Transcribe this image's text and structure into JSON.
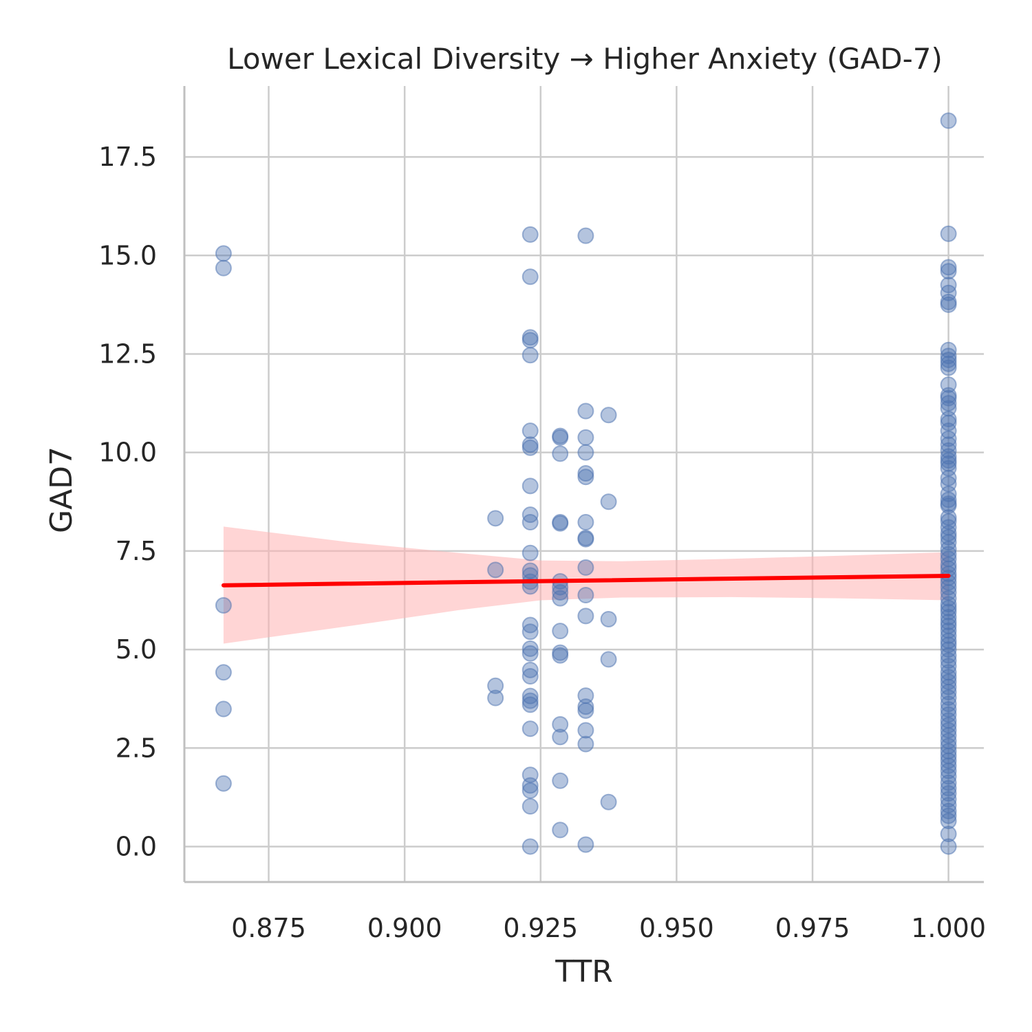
{
  "chart_data": {
    "type": "scatter",
    "title": "Lower Lexical Diversity → Higher Anxiety (GAD-7)",
    "xlabel": "TTR",
    "ylabel": "GAD7",
    "xlim": [
      0.8595,
      1.0065
    ],
    "ylim": [
      -0.9,
      19.3
    ],
    "xticks": [
      {
        "value": 0.875,
        "label": "0.875"
      },
      {
        "value": 0.9,
        "label": "0.900"
      },
      {
        "value": 0.925,
        "label": "0.925"
      },
      {
        "value": 0.95,
        "label": "0.950"
      },
      {
        "value": 0.975,
        "label": "0.975"
      },
      {
        "value": 1.0,
        "label": "1.000"
      }
    ],
    "yticks": [
      {
        "value": 0,
        "label": "0.0"
      },
      {
        "value": 2.5,
        "label": "2.5"
      },
      {
        "value": 5,
        "label": "5.0"
      },
      {
        "value": 7.5,
        "label": "7.5"
      },
      {
        "value": 10,
        "label": "10.0"
      },
      {
        "value": 12.5,
        "label": "12.5"
      },
      {
        "value": 15,
        "label": "15.0"
      },
      {
        "value": 17.5,
        "label": "17.5"
      }
    ],
    "grid": true,
    "colors": {
      "points": "#4c72b0",
      "regression_line": "#ff0000",
      "confidence_band": "#ffb3b3",
      "grid": "#cccccc",
      "axis": "#c0c0c0"
    },
    "series": [
      {
        "type": "scatter",
        "points": [
          [
            0.8667,
            15.05
          ],
          [
            0.8667,
            14.68
          ],
          [
            0.8667,
            6.12
          ],
          [
            0.8667,
            4.42
          ],
          [
            0.8667,
            3.49
          ],
          [
            0.8667,
            1.6
          ],
          [
            0.9167,
            8.33
          ],
          [
            0.9167,
            7.02
          ],
          [
            0.9167,
            4.08
          ],
          [
            0.9167,
            3.77
          ],
          [
            0.9231,
            15.53
          ],
          [
            0.9231,
            14.46
          ],
          [
            0.9231,
            12.92
          ],
          [
            0.9231,
            12.85
          ],
          [
            0.9231,
            12.47
          ],
          [
            0.9231,
            10.55
          ],
          [
            0.9231,
            10.2
          ],
          [
            0.9231,
            10.12
          ],
          [
            0.9231,
            9.15
          ],
          [
            0.9231,
            8.42
          ],
          [
            0.9231,
            8.23
          ],
          [
            0.9231,
            7.45
          ],
          [
            0.9231,
            7.0
          ],
          [
            0.9231,
            6.88
          ],
          [
            0.9231,
            6.72
          ],
          [
            0.9231,
            6.6
          ],
          [
            0.9231,
            5.62
          ],
          [
            0.9231,
            5.45
          ],
          [
            0.9231,
            5.02
          ],
          [
            0.9231,
            4.9
          ],
          [
            0.9231,
            4.48
          ],
          [
            0.9231,
            4.32
          ],
          [
            0.9231,
            3.82
          ],
          [
            0.9231,
            3.7
          ],
          [
            0.9231,
            3.6
          ],
          [
            0.9231,
            2.99
          ],
          [
            0.9231,
            1.82
          ],
          [
            0.9231,
            1.55
          ],
          [
            0.9231,
            1.42
          ],
          [
            0.9231,
            1.02
          ],
          [
            0.9231,
            0.0
          ],
          [
            0.9286,
            10.42
          ],
          [
            0.9286,
            10.38
          ],
          [
            0.9286,
            9.97
          ],
          [
            0.9286,
            8.23
          ],
          [
            0.9286,
            8.2
          ],
          [
            0.9286,
            6.73
          ],
          [
            0.9286,
            6.58
          ],
          [
            0.9286,
            6.45
          ],
          [
            0.9286,
            6.3
          ],
          [
            0.9286,
            5.47
          ],
          [
            0.9286,
            4.92
          ],
          [
            0.9286,
            4.85
          ],
          [
            0.9286,
            3.1
          ],
          [
            0.9286,
            2.78
          ],
          [
            0.9286,
            1.67
          ],
          [
            0.9286,
            0.42
          ],
          [
            0.9333,
            15.5
          ],
          [
            0.9333,
            11.05
          ],
          [
            0.9333,
            10.38
          ],
          [
            0.9333,
            10.0
          ],
          [
            0.9333,
            9.47
          ],
          [
            0.9333,
            9.38
          ],
          [
            0.9333,
            8.23
          ],
          [
            0.9333,
            7.83
          ],
          [
            0.9333,
            7.8
          ],
          [
            0.9333,
            7.08
          ],
          [
            0.9333,
            6.38
          ],
          [
            0.9333,
            5.85
          ],
          [
            0.9333,
            3.83
          ],
          [
            0.9333,
            3.55
          ],
          [
            0.9333,
            3.45
          ],
          [
            0.9333,
            2.95
          ],
          [
            0.9333,
            2.6
          ],
          [
            0.9333,
            0.05
          ],
          [
            0.9375,
            10.95
          ],
          [
            0.9375,
            8.75
          ],
          [
            0.9375,
            5.77
          ],
          [
            0.9375,
            4.75
          ],
          [
            0.9375,
            1.13
          ],
          [
            1.0,
            18.42
          ],
          [
            1.0,
            15.55
          ],
          [
            1.0,
            14.7
          ],
          [
            1.0,
            14.6
          ],
          [
            1.0,
            14.25
          ],
          [
            1.0,
            14.05
          ],
          [
            1.0,
            13.82
          ],
          [
            1.0,
            13.75
          ],
          [
            1.0,
            12.6
          ],
          [
            1.0,
            12.45
          ],
          [
            1.0,
            12.35
          ],
          [
            1.0,
            12.25
          ],
          [
            1.0,
            12.15
          ],
          [
            1.0,
            11.72
          ],
          [
            1.0,
            11.45
          ],
          [
            1.0,
            11.38
          ],
          [
            1.0,
            11.25
          ],
          [
            1.0,
            11.12
          ],
          [
            1.0,
            10.85
          ],
          [
            1.0,
            10.75
          ],
          [
            1.0,
            10.55
          ],
          [
            1.0,
            10.35
          ],
          [
            1.0,
            10.2
          ],
          [
            1.0,
            10.05
          ],
          [
            1.0,
            9.9
          ],
          [
            1.0,
            9.8
          ],
          [
            1.0,
            9.72
          ],
          [
            1.0,
            9.6
          ],
          [
            1.0,
            9.35
          ],
          [
            1.0,
            9.2
          ],
          [
            1.0,
            8.95
          ],
          [
            1.0,
            8.8
          ],
          [
            1.0,
            8.7
          ],
          [
            1.0,
            8.65
          ],
          [
            1.0,
            8.35
          ],
          [
            1.0,
            8.25
          ],
          [
            1.0,
            8.1
          ],
          [
            1.0,
            7.95
          ],
          [
            1.0,
            7.85
          ],
          [
            1.0,
            7.72
          ],
          [
            1.0,
            7.55
          ],
          [
            1.0,
            7.42
          ],
          [
            1.0,
            7.3
          ],
          [
            1.0,
            7.15
          ],
          [
            1.0,
            7.05
          ],
          [
            1.0,
            6.92
          ],
          [
            1.0,
            6.82
          ],
          [
            1.0,
            6.7
          ],
          [
            1.0,
            6.58
          ],
          [
            1.0,
            6.45
          ],
          [
            1.0,
            6.3
          ],
          [
            1.0,
            6.15
          ],
          [
            1.0,
            6.05
          ],
          [
            1.0,
            5.95
          ],
          [
            1.0,
            5.82
          ],
          [
            1.0,
            5.7
          ],
          [
            1.0,
            5.6
          ],
          [
            1.0,
            5.48
          ],
          [
            1.0,
            5.35
          ],
          [
            1.0,
            5.22
          ],
          [
            1.0,
            5.12
          ],
          [
            1.0,
            5.0
          ],
          [
            1.0,
            4.85
          ],
          [
            1.0,
            4.72
          ],
          [
            1.0,
            4.58
          ],
          [
            1.0,
            4.42
          ],
          [
            1.0,
            4.3
          ],
          [
            1.0,
            4.18
          ],
          [
            1.0,
            4.05
          ],
          [
            1.0,
            3.92
          ],
          [
            1.0,
            3.78
          ],
          [
            1.0,
            3.62
          ],
          [
            1.0,
            3.48
          ],
          [
            1.0,
            3.35
          ],
          [
            1.0,
            3.2
          ],
          [
            1.0,
            3.08
          ],
          [
            1.0,
            2.95
          ],
          [
            1.0,
            2.82
          ],
          [
            1.0,
            2.68
          ],
          [
            1.0,
            2.55
          ],
          [
            1.0,
            2.42
          ],
          [
            1.0,
            2.3
          ],
          [
            1.0,
            2.18
          ],
          [
            1.0,
            2.05
          ],
          [
            1.0,
            1.92
          ],
          [
            1.0,
            1.78
          ],
          [
            1.0,
            1.62
          ],
          [
            1.0,
            1.48
          ],
          [
            1.0,
            1.35
          ],
          [
            1.0,
            1.2
          ],
          [
            1.0,
            1.05
          ],
          [
            1.0,
            0.9
          ],
          [
            1.0,
            0.78
          ],
          [
            1.0,
            0.65
          ],
          [
            1.0,
            0.32
          ],
          [
            1.0,
            0.0
          ]
        ]
      },
      {
        "type": "regression",
        "x": [
          0.8667,
          1.0
        ],
        "y": [
          6.63,
          6.87
        ]
      },
      {
        "type": "confidence_band",
        "x": [
          0.8667,
          0.89,
          0.91,
          0.925,
          0.94,
          0.96,
          0.98,
          1.0
        ],
        "lower": [
          5.15,
          5.6,
          6.0,
          6.25,
          6.32,
          6.33,
          6.3,
          6.25
        ],
        "upper": [
          8.12,
          7.72,
          7.45,
          7.26,
          7.24,
          7.3,
          7.38,
          7.47
        ]
      }
    ]
  }
}
